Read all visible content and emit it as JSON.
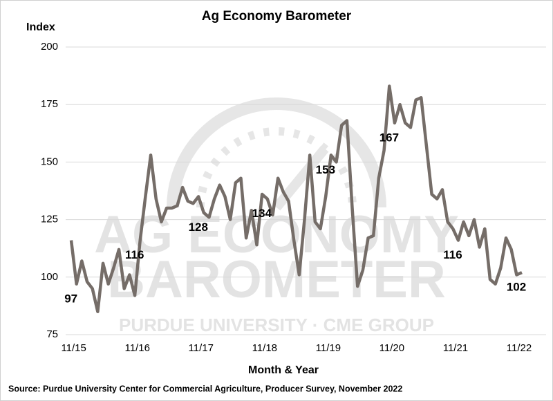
{
  "chart_data": {
    "type": "line",
    "title": "Ag Economy Barometer",
    "y_label": "Index",
    "x_label": "Month & Year",
    "source": "Source: Purdue University Center for Commercial Agriculture, Producer Survey, November 2022",
    "watermark": [
      "AG ECONOMY",
      "BAROMETER",
      "PURDUE UNIVERSITY  ·  CME GROUP"
    ],
    "categories": [
      null,
      "11/15",
      null,
      null,
      null,
      null,
      null,
      null,
      null,
      null,
      null,
      null,
      null,
      "11/16",
      null,
      null,
      null,
      null,
      null,
      null,
      null,
      null,
      null,
      null,
      null,
      "11/17",
      null,
      null,
      null,
      null,
      null,
      null,
      null,
      null,
      null,
      null,
      null,
      "11/18",
      null,
      null,
      null,
      null,
      null,
      null,
      null,
      null,
      null,
      null,
      null,
      "11/19",
      null,
      null,
      null,
      null,
      null,
      null,
      null,
      null,
      null,
      null,
      null,
      "11/20",
      null,
      null,
      null,
      null,
      null,
      null,
      null,
      null,
      null,
      null,
      null,
      "11/21",
      null,
      null,
      null,
      null,
      null,
      null,
      null,
      null,
      null,
      null,
      null,
      "11/22"
    ],
    "series": [
      {
        "name": "Ag Economy Barometer",
        "color": "#756d68",
        "values": [
          116,
          97,
          107,
          98,
          95,
          85,
          106,
          97,
          104,
          112,
          95,
          101,
          92,
          116,
          135,
          153,
          134,
          124,
          130,
          130,
          131,
          139,
          133,
          132,
          135,
          128,
          126,
          134,
          140,
          135,
          125,
          141,
          143,
          117,
          129,
          114,
          136,
          134,
          127,
          143,
          137,
          133,
          116,
          101,
          125,
          153,
          124,
          121,
          135,
          153,
          150,
          166,
          168,
          130,
          96,
          103,
          117,
          118,
          143,
          155,
          183,
          167,
          175,
          167,
          165,
          177,
          178,
          157,
          136,
          134,
          138,
          124,
          121,
          116,
          124,
          118,
          125,
          113,
          121,
          99,
          97,
          104,
          117,
          112,
          101,
          102
        ]
      }
    ],
    "ylim": [
      75,
      200
    ],
    "yticks": [
      75,
      100,
      125,
      150,
      175,
      200
    ],
    "grid": true
  }
}
